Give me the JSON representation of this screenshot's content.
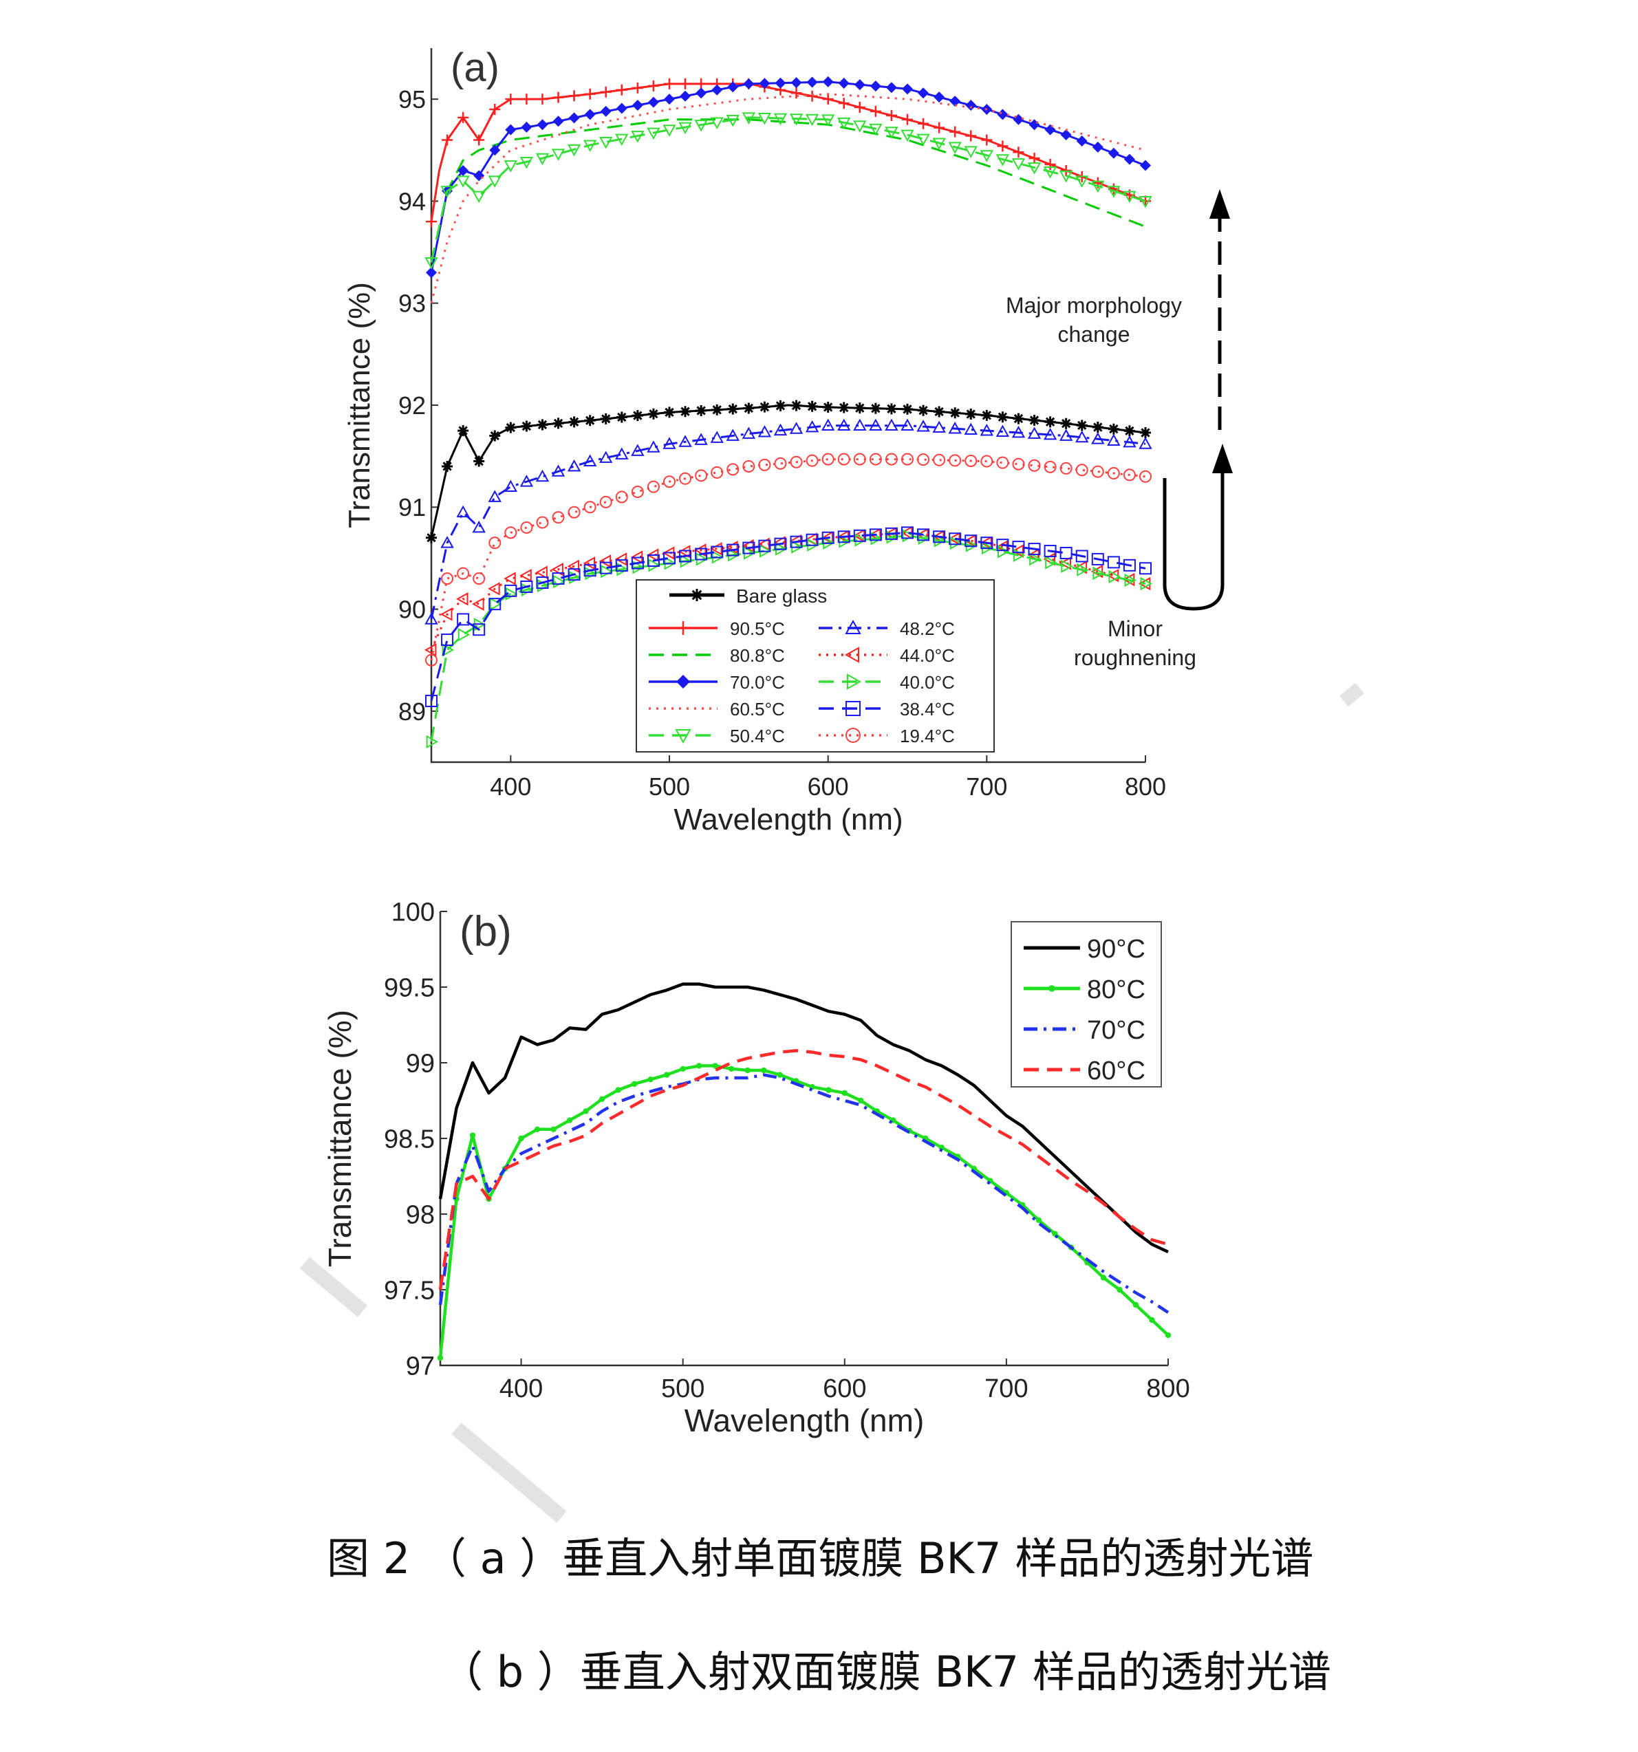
{
  "chart_data": [
    {
      "type": "line",
      "panel_label": "(a)",
      "xlabel": "Wavelength (nm)",
      "ylabel": "Transmittance (%)",
      "xlim": [
        350,
        800
      ],
      "ylim": [
        88.5,
        95.5
      ],
      "xticks": [
        "400",
        "500",
        "600",
        "700",
        "800"
      ],
      "yticks": [
        "89",
        "90",
        "91",
        "92",
        "93",
        "94",
        "95"
      ],
      "annotations": {
        "major": [
          "Major morphology",
          "change"
        ],
        "minor": [
          "Minor",
          "roughnening"
        ]
      },
      "legend": {
        "header": "Bare glass",
        "col1": [
          "90.5°C",
          "80.8°C",
          "70.0°C",
          "60.5°C",
          "50.4°C"
        ],
        "col2": [
          "48.2°C",
          "44.0°C",
          "40.0°C",
          "38.4°C",
          "19.4°C"
        ]
      },
      "series": [
        {
          "name": "Bare glass",
          "color": "#000000",
          "style": "solid",
          "marker": "star",
          "x": [
            350,
            360,
            370,
            380,
            390,
            400,
            450,
            500,
            550,
            575,
            600,
            650,
            700,
            750,
            800
          ],
          "y": [
            90.7,
            91.4,
            91.75,
            91.45,
            91.7,
            91.78,
            91.85,
            91.93,
            91.97,
            92.0,
            91.98,
            91.96,
            91.9,
            91.82,
            91.73
          ]
        },
        {
          "name": "90.5°C",
          "color": "#ff2020",
          "style": "solid",
          "marker": "plus",
          "x": [
            350,
            355,
            360,
            370,
            380,
            390,
            400,
            420,
            450,
            500,
            550,
            600,
            650,
            700,
            750,
            800
          ],
          "y": [
            93.8,
            94.3,
            94.6,
            94.82,
            94.6,
            94.9,
            95.0,
            95.0,
            95.05,
            95.15,
            95.15,
            95.0,
            94.8,
            94.6,
            94.3,
            94.0
          ]
        },
        {
          "name": "80.8°C",
          "color": "#00cc00",
          "style": "dash",
          "marker": "none",
          "x": [
            350,
            360,
            370,
            380,
            400,
            450,
            500,
            550,
            600,
            650,
            700,
            750,
            800
          ],
          "y": [
            93.4,
            94.1,
            94.4,
            94.5,
            94.6,
            94.7,
            94.8,
            94.8,
            94.75,
            94.6,
            94.35,
            94.05,
            93.75
          ]
        },
        {
          "name": "70.0°C",
          "color": "#1a1aee",
          "style": "solid",
          "marker": "diamond",
          "x": [
            350,
            360,
            370,
            380,
            390,
            400,
            420,
            450,
            500,
            550,
            600,
            650,
            700,
            750,
            800
          ],
          "y": [
            93.3,
            94.1,
            94.3,
            94.25,
            94.5,
            94.7,
            94.75,
            94.85,
            95.0,
            95.15,
            95.17,
            95.1,
            94.9,
            94.65,
            94.35
          ]
        },
        {
          "name": "60.5°C",
          "color": "#ff5050",
          "style": "dot",
          "marker": "none",
          "x": [
            350,
            360,
            370,
            380,
            400,
            450,
            500,
            550,
            600,
            650,
            700,
            750,
            800
          ],
          "y": [
            93.0,
            93.6,
            94.0,
            94.2,
            94.5,
            94.75,
            94.9,
            95.0,
            95.05,
            95.0,
            94.9,
            94.7,
            94.5
          ]
        },
        {
          "name": "50.4°C",
          "color": "#33dd33",
          "style": "dash",
          "marker": "triangle-down",
          "x": [
            350,
            360,
            370,
            380,
            400,
            420,
            450,
            500,
            550,
            600,
            650,
            700,
            750,
            800
          ],
          "y": [
            93.4,
            94.1,
            94.2,
            94.05,
            94.35,
            94.42,
            94.55,
            94.7,
            94.82,
            94.8,
            94.65,
            94.45,
            94.25,
            94.0
          ]
        },
        {
          "name": "48.2°C",
          "color": "#1a1aee",
          "style": "dashdot",
          "marker": "triangle-up",
          "x": [
            350,
            360,
            370,
            380,
            390,
            400,
            420,
            450,
            500,
            550,
            600,
            650,
            700,
            750,
            800
          ],
          "y": [
            89.9,
            90.65,
            90.95,
            90.8,
            91.1,
            91.2,
            91.3,
            91.45,
            91.62,
            91.72,
            91.8,
            91.8,
            91.75,
            91.7,
            91.62
          ]
        },
        {
          "name": "44.0°C",
          "color": "#ff2020",
          "style": "dot",
          "marker": "triangle-left",
          "x": [
            350,
            360,
            370,
            380,
            390,
            400,
            450,
            500,
            550,
            600,
            650,
            700,
            750,
            800
          ],
          "y": [
            89.6,
            89.95,
            90.1,
            90.05,
            90.2,
            90.3,
            90.45,
            90.55,
            90.62,
            90.7,
            90.75,
            90.65,
            90.45,
            90.25
          ]
        },
        {
          "name": "40.0°C",
          "color": "#33dd33",
          "style": "dash",
          "marker": "triangle-right",
          "x": [
            350,
            360,
            370,
            380,
            390,
            400,
            450,
            500,
            550,
            600,
            650,
            700,
            750,
            800
          ],
          "y": [
            88.7,
            89.6,
            89.75,
            89.85,
            90.05,
            90.15,
            90.35,
            90.45,
            90.55,
            90.65,
            90.72,
            90.6,
            90.42,
            90.25
          ]
        },
        {
          "name": "38.4°C",
          "color": "#1a1aee",
          "style": "dash",
          "marker": "square",
          "x": [
            350,
            360,
            370,
            380,
            390,
            400,
            450,
            500,
            550,
            600,
            650,
            700,
            750,
            800
          ],
          "y": [
            89.1,
            89.7,
            89.9,
            89.8,
            90.05,
            90.18,
            90.38,
            90.5,
            90.6,
            90.7,
            90.75,
            90.65,
            90.55,
            90.4
          ]
        },
        {
          "name": "19.4°C",
          "color": "#ff4040",
          "style": "dot",
          "marker": "circle",
          "x": [
            350,
            360,
            370,
            380,
            390,
            400,
            420,
            450,
            500,
            550,
            600,
            650,
            700,
            750,
            800
          ],
          "y": [
            89.5,
            90.3,
            90.35,
            90.3,
            90.65,
            90.75,
            90.85,
            91.0,
            91.25,
            91.4,
            91.47,
            91.47,
            91.45,
            91.38,
            91.3
          ]
        }
      ]
    },
    {
      "type": "line",
      "panel_label": "(b)",
      "xlabel": "Wavelength (nm)",
      "ylabel": "Transmittance (%)",
      "xlim": [
        350,
        800
      ],
      "ylim": [
        97,
        100
      ],
      "xticks": [
        "400",
        "500",
        "600",
        "700",
        "800"
      ],
      "yticks": [
        "97",
        "97.5",
        "98",
        "98.5",
        "99",
        "99.5",
        "100"
      ],
      "series": [
        {
          "name": "90°C",
          "color": "#000000",
          "style": "solid",
          "marker": "none",
          "x": [
            350,
            360,
            370,
            380,
            390,
            400,
            410,
            420,
            430,
            440,
            450,
            460,
            470,
            480,
            490,
            500,
            510,
            520,
            530,
            540,
            550,
            560,
            570,
            580,
            590,
            600,
            610,
            620,
            630,
            640,
            650,
            660,
            670,
            680,
            690,
            700,
            710,
            720,
            730,
            740,
            750,
            760,
            770,
            780,
            790,
            800
          ],
          "y": [
            98.1,
            98.7,
            99.0,
            98.8,
            98.9,
            99.17,
            99.12,
            99.15,
            99.23,
            99.22,
            99.32,
            99.35,
            99.4,
            99.45,
            99.48,
            99.52,
            99.52,
            99.5,
            99.5,
            99.5,
            99.48,
            99.45,
            99.42,
            99.38,
            99.34,
            99.32,
            99.28,
            99.18,
            99.12,
            99.08,
            99.02,
            98.98,
            98.92,
            98.85,
            98.75,
            98.65,
            98.58,
            98.48,
            98.38,
            98.28,
            98.18,
            98.08,
            97.98,
            97.88,
            97.8,
            97.75
          ]
        },
        {
          "name": "80°C",
          "color": "#1ee01e",
          "style": "solid",
          "marker": "dot",
          "x": [
            350,
            360,
            370,
            380,
            390,
            400,
            410,
            420,
            430,
            440,
            450,
            460,
            470,
            480,
            490,
            500,
            510,
            520,
            530,
            540,
            550,
            560,
            570,
            580,
            590,
            600,
            610,
            620,
            630,
            640,
            650,
            660,
            670,
            680,
            690,
            700,
            710,
            720,
            730,
            740,
            750,
            760,
            770,
            780,
            790,
            800
          ],
          "y": [
            97.05,
            98.1,
            98.52,
            98.1,
            98.3,
            98.5,
            98.56,
            98.56,
            98.62,
            98.68,
            98.76,
            98.82,
            98.86,
            98.89,
            98.92,
            98.96,
            98.98,
            98.98,
            98.96,
            98.95,
            98.95,
            98.92,
            98.88,
            98.84,
            98.82,
            98.8,
            98.75,
            98.68,
            98.62,
            98.55,
            98.5,
            98.44,
            98.38,
            98.3,
            98.22,
            98.14,
            98.06,
            97.96,
            97.87,
            97.78,
            97.68,
            97.58,
            97.5,
            97.4,
            97.3,
            97.2
          ]
        },
        {
          "name": "70°C",
          "color": "#2233ee",
          "style": "dashdot",
          "marker": "none",
          "x": [
            350,
            360,
            370,
            380,
            390,
            400,
            410,
            420,
            430,
            440,
            450,
            460,
            470,
            480,
            490,
            500,
            510,
            520,
            530,
            540,
            550,
            560,
            570,
            580,
            590,
            600,
            610,
            620,
            630,
            640,
            650,
            660,
            670,
            680,
            690,
            700,
            710,
            720,
            730,
            740,
            750,
            760,
            770,
            780,
            790,
            800
          ],
          "y": [
            97.4,
            98.2,
            98.45,
            98.15,
            98.3,
            98.4,
            98.45,
            98.5,
            98.55,
            98.6,
            98.68,
            98.74,
            98.78,
            98.81,
            98.84,
            98.86,
            98.89,
            98.9,
            98.9,
            98.9,
            98.92,
            98.9,
            98.86,
            98.82,
            98.78,
            98.75,
            98.72,
            98.66,
            98.6,
            98.54,
            98.48,
            98.42,
            98.36,
            98.28,
            98.2,
            98.12,
            98.04,
            97.94,
            97.86,
            97.78,
            97.7,
            97.62,
            97.55,
            97.48,
            97.42,
            97.35
          ]
        },
        {
          "name": "60°C",
          "color": "#ff2a2a",
          "style": "dash",
          "marker": "none",
          "x": [
            350,
            360,
            370,
            380,
            390,
            400,
            410,
            420,
            430,
            440,
            450,
            460,
            470,
            480,
            490,
            500,
            510,
            520,
            530,
            540,
            550,
            560,
            570,
            580,
            590,
            600,
            610,
            620,
            630,
            640,
            650,
            660,
            670,
            680,
            690,
            700,
            710,
            720,
            730,
            740,
            750,
            760,
            770,
            780,
            790,
            800
          ],
          "y": [
            97.5,
            98.2,
            98.25,
            98.1,
            98.3,
            98.35,
            98.4,
            98.45,
            98.48,
            98.52,
            98.6,
            98.66,
            98.72,
            98.78,
            98.82,
            98.85,
            98.9,
            98.95,
            99.0,
            99.03,
            99.05,
            99.07,
            99.08,
            99.07,
            99.05,
            99.04,
            99.02,
            98.98,
            98.93,
            98.88,
            98.84,
            98.78,
            98.72,
            98.65,
            98.58,
            98.52,
            98.46,
            98.38,
            98.3,
            98.22,
            98.15,
            98.07,
            97.98,
            97.9,
            97.83,
            97.8
          ]
        }
      ]
    }
  ],
  "caption": {
    "line1": "图 2 （ a ）垂直入射单面镀膜 BK7 样品的透射光谱",
    "line2": "（ b ）垂直入射双面镀膜 BK7 样品的透射光谱"
  }
}
